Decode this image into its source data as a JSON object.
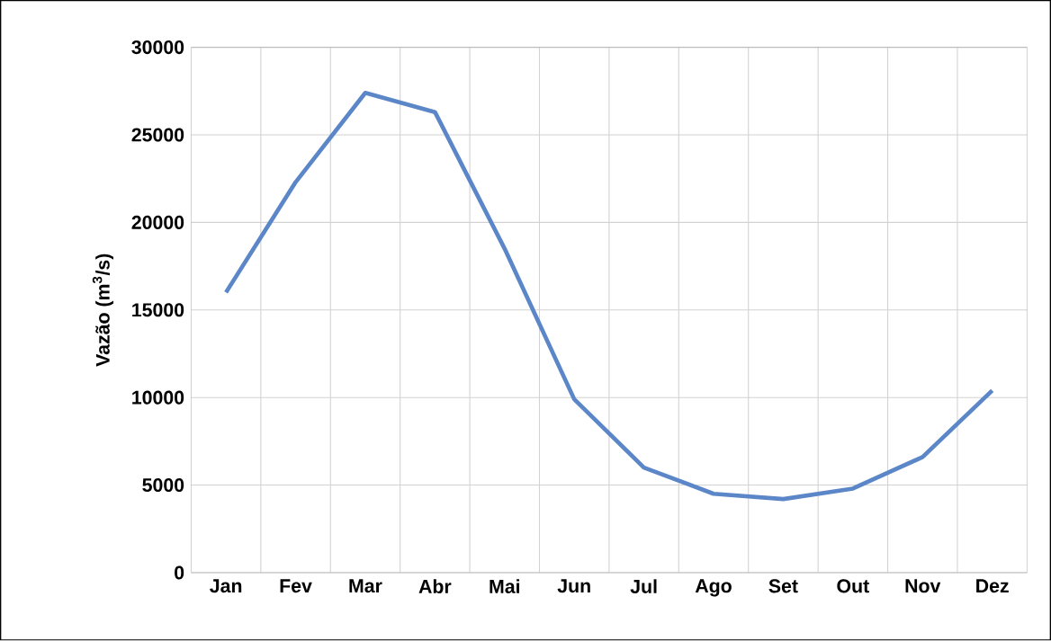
{
  "chart_data": {
    "type": "line",
    "ylabel": "Vazão (m$^{3}$/s)",
    "categories": [
      "Jan",
      "Fev",
      "Mar",
      "Abr",
      "Mai",
      "Jun",
      "Jul",
      "Ago",
      "Set",
      "Out",
      "Nov",
      "Dez"
    ],
    "values": [
      16000,
      22300,
      27400,
      26300,
      18500,
      9900,
      6000,
      4500,
      4200,
      4800,
      6600,
      10400
    ],
    "color": "#5b86c8",
    "ylim": [
      0,
      30000
    ],
    "yticks": [
      0,
      5000,
      10000,
      15000,
      20000,
      25000,
      30000
    ],
    "grid": true,
    "marker": "none",
    "line_style": "solid"
  }
}
